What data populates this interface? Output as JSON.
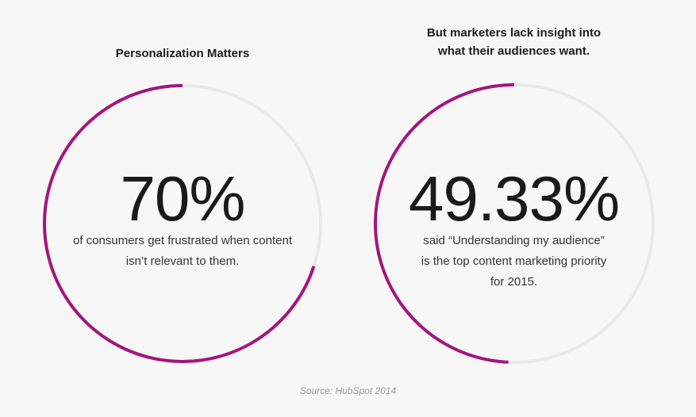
{
  "chart_data": [
    {
      "type": "donut",
      "title": "Personalization Matters",
      "value_label": "70%",
      "value": 70,
      "max": 100,
      "description": "of consumers get frustrated when content isn’t relevant to them."
    },
    {
      "type": "donut",
      "title": "But marketers lack insight into what their audiences want.",
      "value_label": "49.33%",
      "value": 49.33,
      "max": 100,
      "description": "said “Understanding my audience” is the top content marketing priority for 2015."
    }
  ],
  "colors": {
    "accent": "#a4157f",
    "track": "#e9e8ea"
  },
  "source": "Source: HubSpot 2014"
}
